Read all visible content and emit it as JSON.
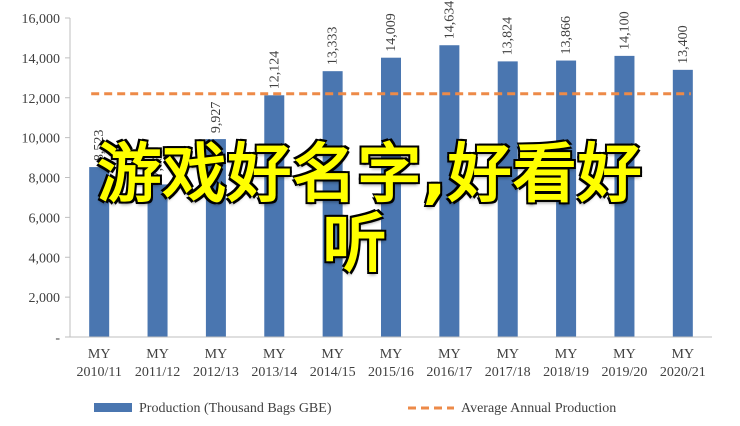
{
  "chart_data": {
    "type": "bar",
    "categories": [
      "MY\n2010/11",
      "MY\n2011/12",
      "MY\n2012/13",
      "MY\n2013/14",
      "MY\n2014/15",
      "MY\n2015/16",
      "MY\n2016/17",
      "MY\n2017/18",
      "MY\n2018/19",
      "MY\n2019/20",
      "MY\n2020/21"
    ],
    "series": [
      {
        "name": "Production (Thousand Bags GBE)",
        "values": [
          8523,
          7653,
          9927,
          12124,
          13333,
          14009,
          14634,
          13824,
          13866,
          14100,
          13400
        ],
        "labels": [
          "8,523",
          "7,653",
          "9,927",
          "12,124",
          "13,333",
          "14,009",
          "14,634",
          "13,824",
          "13,866",
          "14,100",
          "13,400"
        ],
        "color": "#4a76b0"
      },
      {
        "name": "Average Annual Production",
        "type": "line",
        "values": [
          12200,
          12200,
          12200,
          12200,
          12200,
          12200,
          12200,
          12200,
          12200,
          12200,
          12200
        ],
        "color": "#ed8a48",
        "style": "dashed"
      }
    ],
    "ylim": [
      0,
      16000
    ],
    "yticks": [
      0,
      2000,
      4000,
      6000,
      8000,
      10000,
      12000,
      14000,
      16000
    ],
    "ytick_labels": [
      "-",
      "2,000",
      "4,000",
      "6,000",
      "8,000",
      "10,000",
      "12,000",
      "14,000",
      "16,000"
    ],
    "grid": false,
    "legend_position": "bottom"
  },
  "overlay": {
    "line1": "游戏好名字,好看好",
    "line2": "听",
    "color": "#ffff00"
  }
}
